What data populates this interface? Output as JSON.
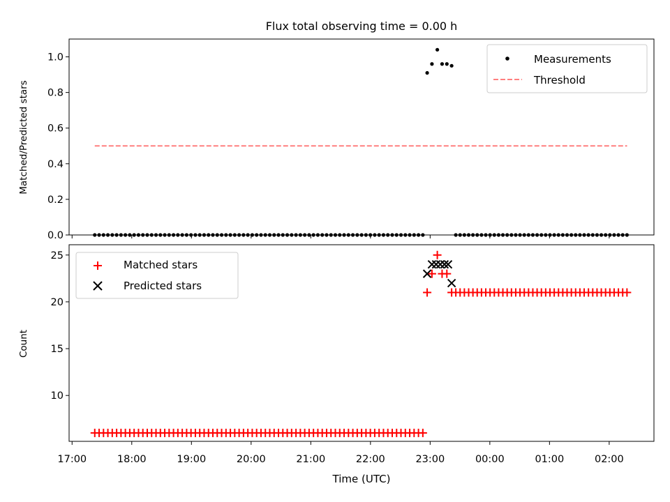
{
  "chart_data": [
    {
      "type": "scatter",
      "title": "Flux total observing time = 0.00 h",
      "ylabel": "Matched/Predicted stars",
      "ylim": [
        0,
        1.1
      ],
      "yticks": [
        0.0,
        0.2,
        0.4,
        0.6,
        0.8,
        1.0
      ],
      "ytick_labels": [
        "0.0",
        "0.2",
        "0.4",
        "0.6",
        "0.8",
        "1.0"
      ],
      "xlim_hours": [
        16.95,
        26.75
      ],
      "legend_position": "top-right",
      "series": [
        {
          "name": "Measurements",
          "marker": "dot",
          "color": "#000000",
          "points": [
            [
              22.95,
              0.91
            ],
            [
              23.03,
              0.96
            ],
            [
              23.12,
              1.04
            ],
            [
              23.2,
              0.96
            ],
            [
              23.28,
              0.96
            ],
            [
              23.36,
              0.95
            ]
          ],
          "zero_runs": [
            [
              17.38,
              22.88,
              0.0733
            ],
            [
              23.43,
              26.3,
              0.0717
            ]
          ]
        },
        {
          "name": "Threshold",
          "line": "dashed",
          "color": "#ff7f7f",
          "x": [
            17.38,
            26.3
          ],
          "y": [
            0.5,
            0.5
          ]
        }
      ]
    },
    {
      "type": "scatter",
      "ylabel": "Count",
      "xlabel": "Time (UTC)",
      "ylim": [
        5.1,
        26.1
      ],
      "yticks": [
        10,
        15,
        20,
        25
      ],
      "ytick_labels": [
        "10",
        "15",
        "20",
        "25"
      ],
      "xlim_hours": [
        16.95,
        26.75
      ],
      "xticks_hours": [
        17,
        18,
        19,
        20,
        21,
        22,
        23,
        24,
        25,
        26
      ],
      "xtick_labels": [
        "17:00",
        "18:00",
        "19:00",
        "20:00",
        "21:00",
        "22:00",
        "23:00",
        "00:00",
        "01:00",
        "02:00"
      ],
      "legend_position": "top-left",
      "series": [
        {
          "name": "Matched stars",
          "marker": "plus",
          "color": "#ff0000",
          "runs": [
            [
              17.38,
              22.88,
              0.0733,
              6
            ],
            [
              23.43,
              26.3,
              0.0717,
              21
            ]
          ],
          "points": [
            [
              22.95,
              21
            ],
            [
              23.03,
              23
            ],
            [
              23.12,
              25
            ],
            [
              23.2,
              23
            ],
            [
              23.28,
              23
            ],
            [
              23.36,
              21
            ]
          ]
        },
        {
          "name": "Predicted stars",
          "marker": "x",
          "color": "#000000",
          "points": [
            [
              22.95,
              23
            ],
            [
              23.03,
              24
            ],
            [
              23.1,
              24
            ],
            [
              23.17,
              24
            ],
            [
              23.24,
              24
            ],
            [
              23.3,
              24
            ],
            [
              23.36,
              22
            ]
          ]
        }
      ]
    }
  ]
}
